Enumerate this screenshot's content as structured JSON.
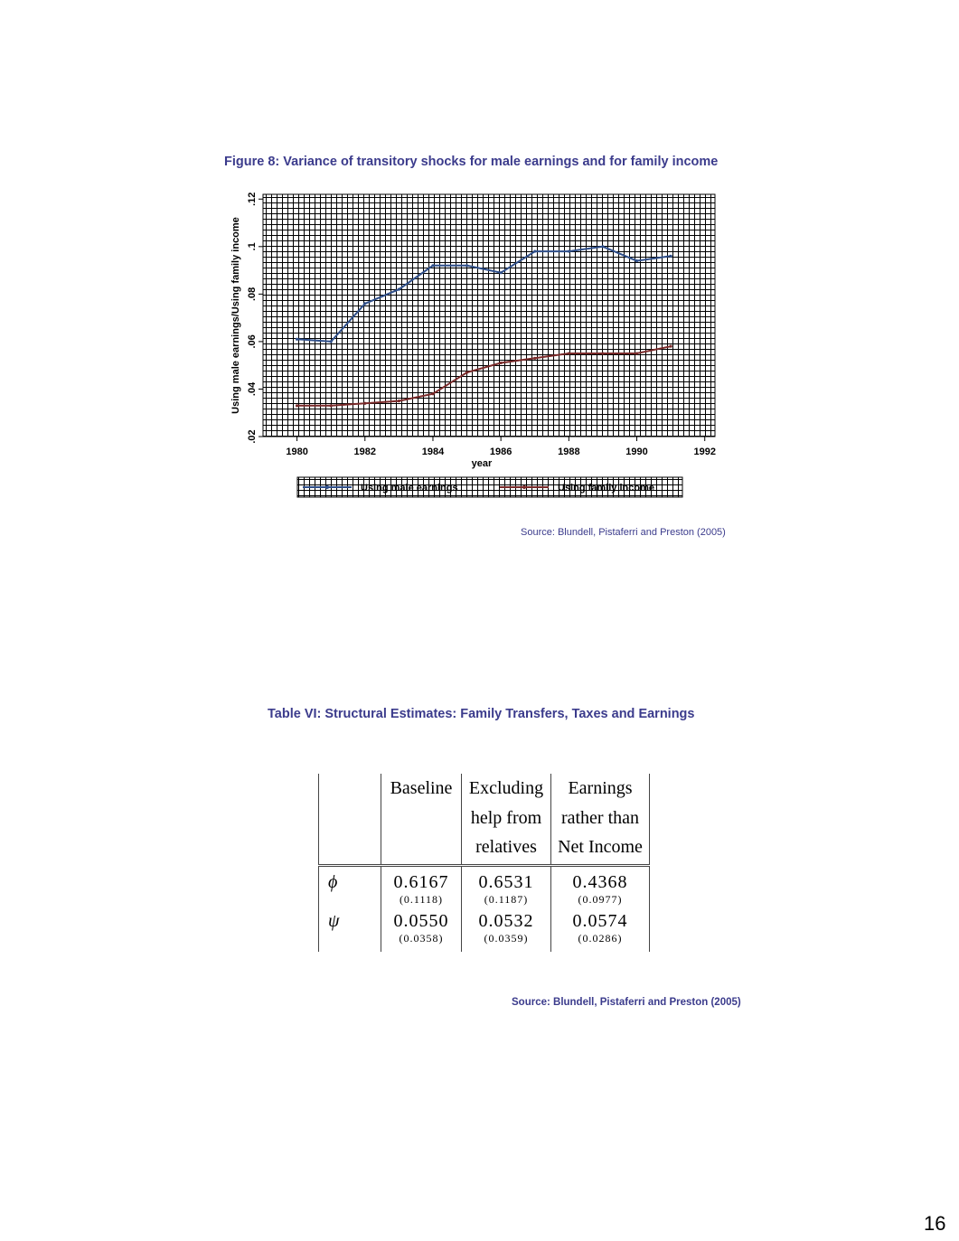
{
  "figure": {
    "title": "Figure 8: Variance of transitory shocks for male earnings and for family income",
    "source": "Source: Blundell, Pistaferri and Preston (2005)"
  },
  "chart_data": {
    "type": "line",
    "title": "",
    "xlabel": "year",
    "ylabel": "Using male earnings/Using family income",
    "xlim": [
      1979,
      1992.3
    ],
    "ylim": [
      0.02,
      0.122
    ],
    "xticks": [
      1980,
      1982,
      1984,
      1986,
      1988,
      1990,
      1992
    ],
    "yticks": [
      0.02,
      0.04,
      0.06,
      0.08,
      0.1,
      0.12
    ],
    "ytick_labels": [
      ".02",
      ".04",
      ".06",
      ".08",
      ".1",
      ".12"
    ],
    "grid": true,
    "legend_placement": "bottom",
    "x": [
      1980,
      1981,
      1982,
      1983,
      1984,
      1985,
      1986,
      1987,
      1988,
      1989,
      1990,
      1991
    ],
    "series": [
      {
        "name": "Using male earnings",
        "color": "#2f4f8a",
        "values": [
          0.061,
          0.06,
          0.076,
          0.082,
          0.092,
          0.092,
          0.089,
          0.098,
          0.098,
          0.1,
          0.094,
          0.096
        ]
      },
      {
        "name": "Using family income",
        "color": "#7a2a2a",
        "values": [
          0.033,
          0.033,
          0.034,
          0.035,
          0.038,
          0.047,
          0.051,
          0.053,
          0.055,
          0.055,
          0.055,
          0.058
        ]
      }
    ]
  },
  "table": {
    "title": "Table VI: Structural Estimates: Family Transfers, Taxes and Earnings",
    "headers": [
      [
        "",
        "",
        ""
      ],
      [
        "Baseline",
        "",
        ""
      ],
      [
        "Excluding",
        "help from",
        "relatives"
      ],
      [
        "Earnings",
        "rather than",
        "Net Income"
      ]
    ],
    "rows": [
      {
        "param": "ϕ",
        "values": [
          "0.6167",
          "0.6531",
          "0.4368"
        ],
        "se": [
          "(0.1118)",
          "(0.1187)",
          "(0.0977)"
        ]
      },
      {
        "param": "ψ",
        "values": [
          "0.0550",
          "0.0532",
          "0.0574"
        ],
        "se": [
          "(0.0358)",
          "(0.0359)",
          "(0.0286)"
        ]
      }
    ],
    "source": "Source: Blundell, Pistaferri and Preston (2005)"
  },
  "page_number": "16"
}
